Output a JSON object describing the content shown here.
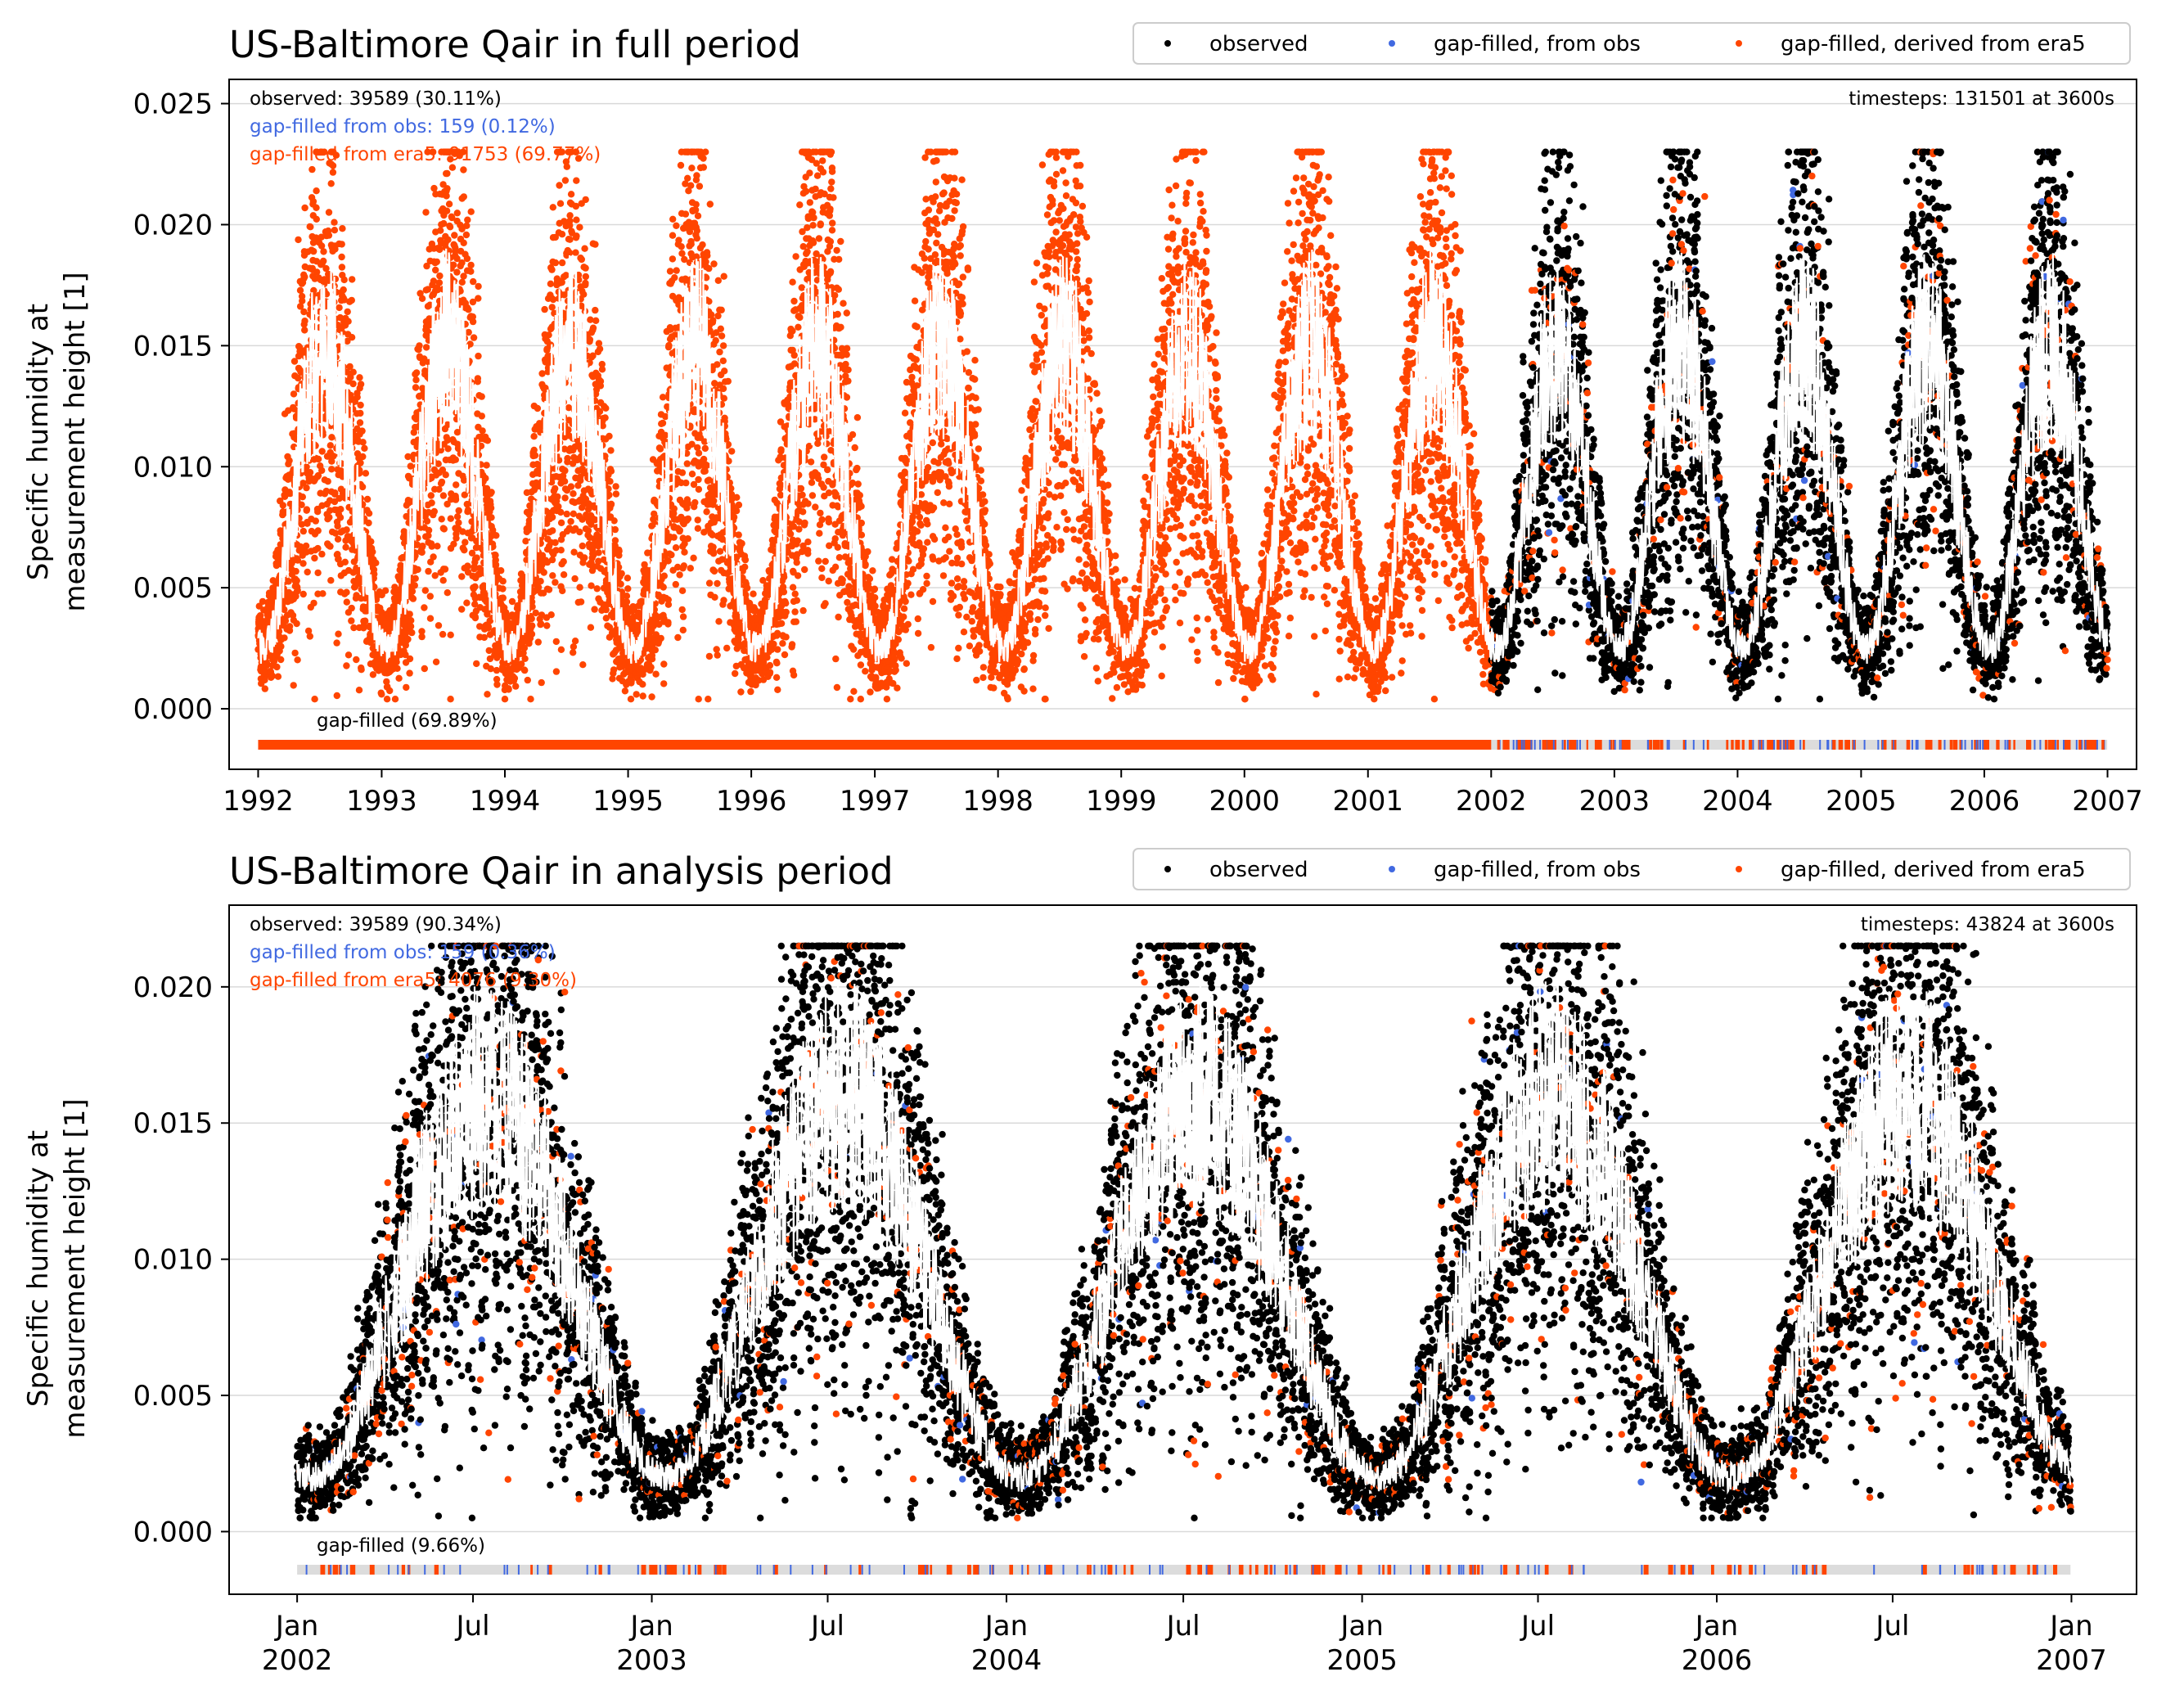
{
  "colors": {
    "observed": "#000000",
    "gapfilled_obs": "#4169e1",
    "gapfilled_era5": "#ff4500",
    "smooth_line": "#ffffff",
    "gap_bar_background": "#dcdcdc",
    "grid": "#d9d9d9"
  },
  "legend": {
    "observed": "observed",
    "gapfilled_obs": "gap-filled, from obs",
    "gapfilled_era5": "gap-filled, derived from era5"
  },
  "chart_data": [
    {
      "type": "scatter",
      "title": "US-Baltimore Qair in full period",
      "ylabel": [
        "Specific humidity at",
        "measurement height [1]"
      ],
      "xlim": [
        "1991-10-07",
        "2007-03-28"
      ],
      "ylim": [
        -0.0025,
        0.026
      ],
      "yticks": [
        "0.000",
        "0.005",
        "0.010",
        "0.015",
        "0.020",
        "0.025"
      ],
      "xtick_labels": [
        "1992",
        "1993",
        "1994",
        "1995",
        "1996",
        "1997",
        "1998",
        "1999",
        "2000",
        "2001",
        "2002",
        "2003",
        "2004",
        "2005",
        "2006",
        "2007"
      ],
      "grid": "horizontal",
      "legend_position": "top-right",
      "stats": {
        "observed": "observed: 39589 (30.11%)",
        "gapfilled_obs": "gap-filled from obs: 159 (0.12%)",
        "gapfilled_era5": "gap-filled from era5: 91753 (69.77%)",
        "timesteps": "timesteps: 131501 at 3600s",
        "gap_label": "gap-filled (69.89%)"
      },
      "period": [
        "1992-01-01",
        "2006-12-31"
      ],
      "observed_start": "2002-01-01",
      "seasonal_model": {
        "peak_month": 7.5,
        "monthly_mean_min": 0.0025,
        "monthly_mean_max": 0.015,
        "daily_range_min": 0.0004,
        "daily_range_max": 0.023
      },
      "series": [
        {
          "name": "observed",
          "count": 39589,
          "percent": 30.11
        },
        {
          "name": "gap-filled, from obs",
          "count": 159,
          "percent": 0.12
        },
        {
          "name": "gap-filled, derived from era5",
          "count": 91753,
          "percent": 69.77
        }
      ]
    },
    {
      "type": "scatter",
      "title": "US-Baltimore Qair in analysis period",
      "ylabel": [
        "Specific humidity at",
        "measurement height [1]"
      ],
      "xlim": [
        "2001-10-23",
        "2007-03-09"
      ],
      "ylim": [
        -0.0023,
        0.023
      ],
      "yticks": [
        "0.000",
        "0.005",
        "0.010",
        "0.015",
        "0.020"
      ],
      "xtick_labels": [
        [
          "Jan",
          "2002"
        ],
        [
          "Jul",
          ""
        ],
        [
          "Jan",
          "2003"
        ],
        [
          "Jul",
          ""
        ],
        [
          "Jan",
          "2004"
        ],
        [
          "Jul",
          ""
        ],
        [
          "Jan",
          "2005"
        ],
        [
          "Jul",
          ""
        ],
        [
          "Jan",
          "2006"
        ],
        [
          "Jul",
          ""
        ],
        [
          "Jan",
          "2007"
        ]
      ],
      "grid": "horizontal",
      "legend_position": "top-right",
      "stats": {
        "observed": "observed: 39589 (90.34%)",
        "gapfilled_obs": "gap-filled from obs: 159 (0.36%)",
        "gapfilled_era5": "gap-filled from era5: 4076 (9.30%)",
        "timesteps": "timesteps: 43824 at 3600s",
        "gap_label": "gap-filled (9.66%)"
      },
      "period": [
        "2002-01-01",
        "2006-12-31"
      ],
      "observed_start": "2002-01-01",
      "seasonal_model": {
        "peak_month": 7.5,
        "monthly_mean_min": 0.002,
        "monthly_mean_max": 0.016,
        "daily_range_min": 0.0005,
        "daily_range_max": 0.0215
      },
      "series": [
        {
          "name": "observed",
          "count": 39589,
          "percent": 90.34
        },
        {
          "name": "gap-filled, from obs",
          "count": 159,
          "percent": 0.36
        },
        {
          "name": "gap-filled, derived from era5",
          "count": 4076,
          "percent": 9.3
        }
      ]
    }
  ]
}
